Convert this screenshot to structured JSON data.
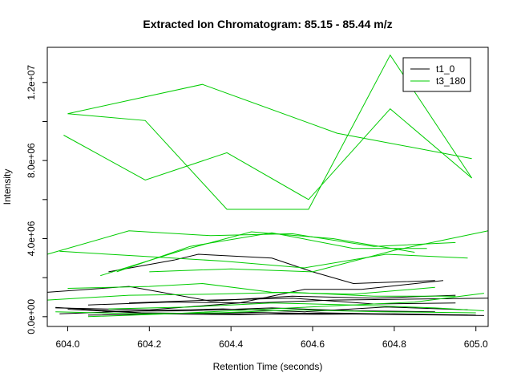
{
  "chart_data": {
    "type": "line",
    "title": "Extracted Ion Chromatogram: 85.15 - 85.44 m/z",
    "xlabel": "Retention Time (seconds)",
    "ylabel": "Intensity",
    "xlim": [
      603.95,
      605.03
    ],
    "ylim": [
      -500000,
      13800000
    ],
    "x_ticks": [
      {
        "value": 604.0,
        "label": "604.0"
      },
      {
        "value": 604.2,
        "label": "604.2"
      },
      {
        "value": 604.4,
        "label": "604.4"
      },
      {
        "value": 604.6,
        "label": "604.6"
      },
      {
        "value": 604.8,
        "label": "604.8"
      },
      {
        "value": 605.0,
        "label": "605.0"
      }
    ],
    "y_ticks": [
      {
        "value": 0,
        "label": "0.0e+00"
      },
      {
        "value": 4000000,
        "label": "4.0e+06"
      },
      {
        "value": 8000000,
        "label": "8.0e+06"
      },
      {
        "value": 12000000,
        "label": "1.2e+07"
      }
    ],
    "y_minor_ticks": [
      2000000,
      6000000,
      10000000
    ],
    "legend": {
      "placement": "top-right"
    },
    "series": [
      {
        "name": "t1_0",
        "color": "#000000",
        "lines": [
          [
            [
              603.95,
              1250000
            ],
            [
              604.15,
              1550000
            ],
            [
              604.35,
              800000
            ],
            [
              604.55,
              1050000
            ],
            [
              604.75,
              950000
            ],
            [
              604.95,
              1100000
            ]
          ],
          [
            [
              603.97,
              480000
            ],
            [
              604.18,
              200000
            ],
            [
              604.4,
              150000
            ],
            [
              604.6,
              120000
            ],
            [
              604.8,
              150000
            ],
            [
              605.0,
              80000
            ]
          ],
          [
            [
              604.1,
              2300000
            ],
            [
              604.26,
              2900000
            ],
            [
              604.32,
              3200000
            ],
            [
              604.5,
              3000000
            ],
            [
              604.6,
              2300000
            ],
            [
              604.7,
              1700000
            ],
            [
              604.9,
              1850000
            ]
          ],
          [
            [
              604.05,
              80000
            ],
            [
              604.25,
              150000
            ],
            [
              604.45,
              220000
            ],
            [
              604.65,
              150000
            ],
            [
              604.85,
              100000
            ],
            [
              605.02,
              60000
            ]
          ],
          [
            [
              603.97,
              450000
            ],
            [
              604.2,
              350000
            ],
            [
              604.42,
              700000
            ],
            [
              604.58,
              1400000
            ],
            [
              604.72,
              1400000
            ],
            [
              604.92,
              1850000
            ]
          ],
          [
            [
              604.0,
              380000
            ],
            [
              604.22,
              150000
            ],
            [
              604.42,
              100000
            ],
            [
              604.62,
              200000
            ],
            [
              604.82,
              130000
            ],
            [
              604.98,
              80000
            ]
          ],
          [
            [
              604.15,
              700000
            ],
            [
              604.35,
              850000
            ],
            [
              604.55,
              950000
            ],
            [
              604.75,
              650000
            ],
            [
              604.95,
              700000
            ]
          ],
          [
            [
              604.1,
              280000
            ],
            [
              604.3,
              300000
            ],
            [
              604.5,
              450000
            ],
            [
              604.7,
              300000
            ],
            [
              604.9,
              250000
            ]
          ],
          [
            [
              603.98,
              150000
            ],
            [
              604.18,
              300000
            ],
            [
              604.38,
              400000
            ],
            [
              604.58,
              250000
            ],
            [
              604.78,
              500000
            ],
            [
              604.98,
              350000
            ]
          ],
          [
            [
              604.05,
              600000
            ],
            [
              604.25,
              750000
            ],
            [
              604.45,
              700000
            ],
            [
              604.65,
              850000
            ],
            [
              604.85,
              900000
            ],
            [
              605.03,
              950000
            ]
          ]
        ]
      },
      {
        "name": "t3_180",
        "color": "#00cc00",
        "lines": [
          [
            [
              604.0,
              10400000
            ],
            [
              604.19,
              10050000
            ],
            [
              604.39,
              5500000
            ],
            [
              604.59,
              5500000
            ],
            [
              604.79,
              13400000
            ],
            [
              604.99,
              7100000
            ]
          ],
          [
            [
              603.99,
              9300000
            ],
            [
              604.19,
              7000000
            ],
            [
              604.39,
              8400000
            ],
            [
              604.59,
              6000000
            ],
            [
              604.79,
              10650000
            ],
            [
              604.99,
              7100000
            ]
          ],
          [
            [
              604.0,
              10400000
            ],
            [
              604.33,
              11900000
            ],
            [
              604.66,
              9400000
            ],
            [
              604.99,
              8100000
            ]
          ],
          [
            [
              603.95,
              3200000
            ],
            [
              604.15,
              4400000
            ],
            [
              604.35,
              4150000
            ],
            [
              604.55,
              4250000
            ],
            [
              604.75,
              3600000
            ],
            [
              604.95,
              3800000
            ]
          ],
          [
            [
              603.98,
              3350000
            ],
            [
              604.18,
              3100000
            ],
            [
              604.38,
              2850000
            ],
            [
              604.58,
              2500000
            ],
            [
              604.78,
              3200000
            ],
            [
              604.98,
              3000000
            ]
          ],
          [
            [
              604.08,
              2100000
            ],
            [
              604.28,
              3400000
            ],
            [
              604.45,
              4350000
            ],
            [
              604.65,
              4000000
            ],
            [
              604.85,
              3300000
            ]
          ],
          [
            [
              604.12,
              2300000
            ],
            [
              604.3,
              3600000
            ],
            [
              604.5,
              4300000
            ],
            [
              604.7,
              3500000
            ],
            [
              604.88,
              3500000
            ]
          ],
          [
            [
              604.2,
              2300000
            ],
            [
              604.4,
              2450000
            ],
            [
              604.6,
              2300000
            ],
            [
              604.8,
              3400000
            ],
            [
              605.03,
              4400000
            ]
          ],
          [
            [
              604.0,
              1450000
            ],
            [
              604.2,
              1550000
            ],
            [
              604.33,
              1700000
            ],
            [
              604.5,
              1250000
            ],
            [
              604.7,
              1150000
            ],
            [
              604.9,
              1500000
            ]
          ],
          [
            [
              603.95,
              850000
            ],
            [
              604.15,
              1100000
            ],
            [
              604.35,
              1150000
            ],
            [
              604.55,
              1250000
            ],
            [
              604.75,
              1050000
            ],
            [
              604.95,
              1050000
            ]
          ],
          [
            [
              604.05,
              0
            ],
            [
              604.25,
              150000
            ],
            [
              604.45,
              350000
            ],
            [
              604.65,
              550000
            ],
            [
              604.85,
              750000
            ],
            [
              605.02,
              1200000
            ]
          ],
          [
            [
              604.1,
              400000
            ],
            [
              604.3,
              500000
            ],
            [
              604.5,
              700000
            ],
            [
              604.7,
              600000
            ],
            [
              604.9,
              450000
            ],
            [
              605.02,
              300000
            ]
          ],
          [
            [
              603.97,
              250000
            ],
            [
              604.17,
              150000
            ],
            [
              604.37,
              200000
            ],
            [
              604.57,
              350000
            ],
            [
              604.77,
              250000
            ],
            [
              605.0,
              200000
            ]
          ]
        ]
      }
    ]
  }
}
